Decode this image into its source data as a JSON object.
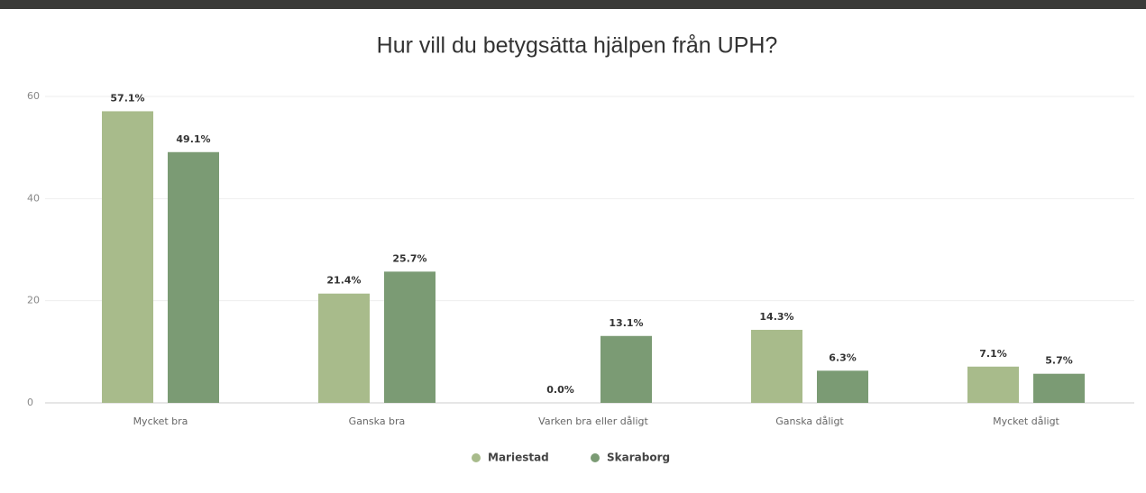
{
  "chart_data": {
    "type": "bar",
    "title": "Hur vill du betygsätta hjälpen från UPH?",
    "categories": [
      "Mycket bra",
      "Ganska bra",
      "Varken bra eller dåligt",
      "Ganska dåligt",
      "Mycket dåligt"
    ],
    "series": [
      {
        "name": "Mariestad",
        "color": "#a8bb8b",
        "values": [
          57.1,
          21.4,
          0.0,
          14.3,
          7.1
        ],
        "value_labels": [
          "57.1%",
          "21.4%",
          "0.0%",
          "14.3%",
          "7.1%"
        ]
      },
      {
        "name": "Skaraborg",
        "color": "#7b9b74",
        "values": [
          49.1,
          25.7,
          13.1,
          6.3,
          5.7
        ],
        "value_labels": [
          "49.1%",
          "25.7%",
          "13.1%",
          "6.3%",
          "5.7%"
        ]
      }
    ],
    "ylim": [
      0,
      60
    ],
    "yticks": [
      0,
      20,
      40,
      60
    ],
    "grid": true
  }
}
